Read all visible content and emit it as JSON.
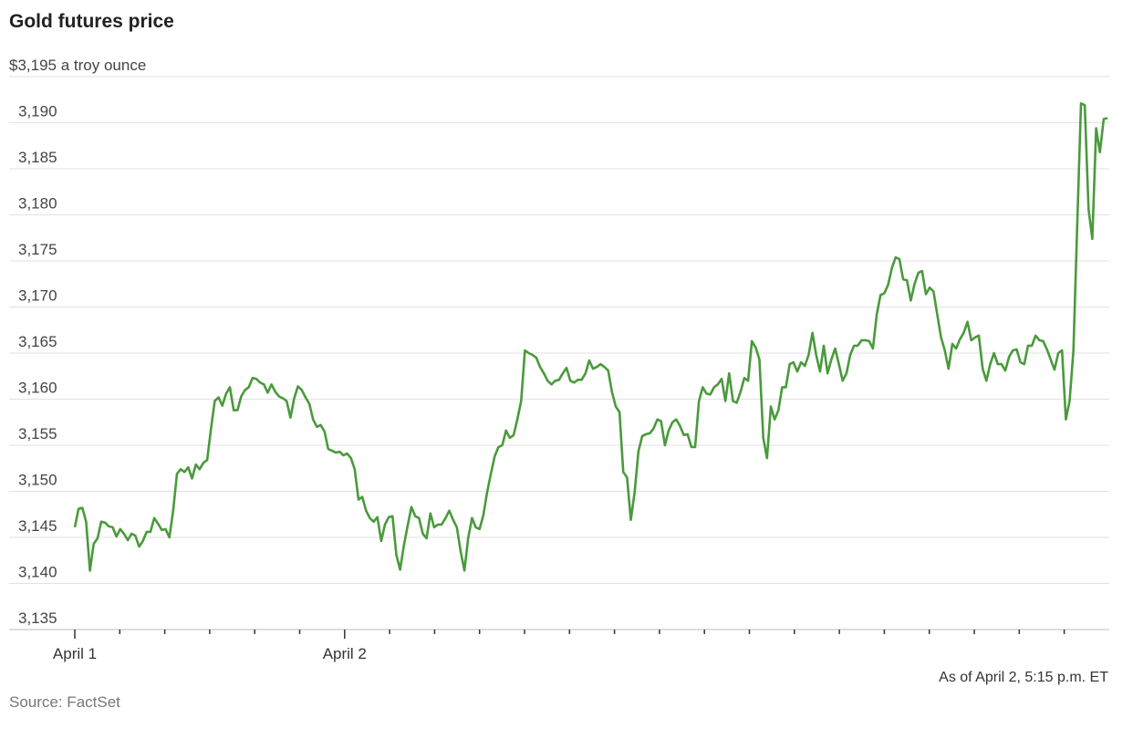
{
  "chart_data": {
    "type": "line",
    "title": "Gold futures price",
    "unit_label": "$3,195 a troy ounce",
    "ylim": [
      3135,
      3195
    ],
    "y_ticks": [
      3135,
      3140,
      3145,
      3150,
      3155,
      3160,
      3165,
      3170,
      3175,
      3180,
      3185,
      3190,
      3195
    ],
    "y_tick_labels": [
      "3,135",
      "3,140",
      "3,145",
      "3,150",
      "3,155",
      "3,160",
      "3,165",
      "3,170",
      "3,175",
      "3,180",
      "3,185",
      "3,190",
      "$3,195 a troy ounce"
    ],
    "x_tick_count": 23,
    "x_tick_labels": [
      {
        "tick": 0,
        "label": "April 1"
      },
      {
        "tick": 6,
        "label": "April 2"
      }
    ],
    "grid": true,
    "line_color": "#4a9a3c",
    "values": [
      3146.1,
      3148.1,
      3148.2,
      3146.7,
      3141.4,
      3144.3,
      3144.9,
      3146.7,
      3146.6,
      3146.2,
      3146.1,
      3145.1,
      3145.9,
      3145.4,
      3144.7,
      3145.4,
      3145.2,
      3144.0,
      3144.6,
      3145.6,
      3145.6,
      3147.1,
      3146.5,
      3145.8,
      3145.9,
      3145.0,
      3147.9,
      3151.9,
      3152.4,
      3152.1,
      3152.6,
      3151.4,
      3152.9,
      3152.4,
      3153.1,
      3153.4,
      3156.8,
      3159.8,
      3160.2,
      3159.3,
      3160.6,
      3161.3,
      3158.8,
      3158.8,
      3160.3,
      3161.0,
      3161.3,
      3162.3,
      3162.2,
      3161.8,
      3161.6,
      3160.7,
      3161.6,
      3160.8,
      3160.3,
      3160.1,
      3159.8,
      3158.0,
      3160.1,
      3161.4,
      3161.0,
      3160.2,
      3159.5,
      3157.8,
      3157.0,
      3157.2,
      3156.5,
      3154.6,
      3154.4,
      3154.2,
      3154.3,
      3153.9,
      3154.1,
      3153.6,
      3152.4,
      3149.1,
      3149.4,
      3147.9,
      3147.1,
      3146.7,
      3147.2,
      3144.6,
      3146.4,
      3147.2,
      3147.3,
      3143.1,
      3141.5,
      3144.1,
      3146.3,
      3148.3,
      3147.3,
      3147.1,
      3145.4,
      3144.9,
      3147.6,
      3146.1,
      3146.4,
      3146.4,
      3147.1,
      3147.9,
      3146.9,
      3146.1,
      3143.5,
      3141.4,
      3144.9,
      3147.1,
      3146.1,
      3145.9,
      3147.4,
      3149.9,
      3151.9,
      3153.8,
      3154.8,
      3155.0,
      3156.6,
      3155.8,
      3156.1,
      3157.8,
      3159.8,
      3165.3,
      3165.0,
      3164.8,
      3164.5,
      3163.5,
      3162.8,
      3162.0,
      3161.6,
      3162.0,
      3162.1,
      3162.8,
      3163.4,
      3162.0,
      3161.8,
      3162.1,
      3162.1,
      3162.8,
      3164.2,
      3163.3,
      3163.5,
      3163.8,
      3163.5,
      3163.1,
      3160.8,
      3159.2,
      3158.6,
      3152.1,
      3151.5,
      3146.9,
      3149.9,
      3154.3,
      3156.0,
      3156.2,
      3156.3,
      3156.8,
      3157.8,
      3157.6,
      3155.0,
      3156.6,
      3157.5,
      3157.8,
      3157.1,
      3156.1,
      3156.2,
      3154.8,
      3154.8,
      3159.8,
      3161.3,
      3160.6,
      3160.5,
      3161.3,
      3161.6,
      3162.2,
      3159.8,
      3162.8,
      3159.8,
      3159.6,
      3160.8,
      3162.3,
      3162.0,
      3166.3,
      3165.6,
      3164.3,
      3155.8,
      3153.6,
      3159.2,
      3157.8,
      3158.8,
      3161.3,
      3161.3,
      3163.8,
      3164.0,
      3163.0,
      3164.0,
      3163.6,
      3164.8,
      3167.2,
      3164.8,
      3163.0,
      3165.8,
      3162.8,
      3164.3,
      3165.5,
      3163.8,
      3162.0,
      3162.8,
      3164.8,
      3165.8,
      3165.8,
      3166.4,
      3166.4,
      3166.3,
      3165.5,
      3169.2,
      3171.3,
      3171.5,
      3172.4,
      3174.2,
      3175.4,
      3175.2,
      3173.0,
      3172.9,
      3170.7,
      3172.5,
      3173.7,
      3173.9,
      3171.4,
      3172.1,
      3171.7,
      3169.2,
      3166.7,
      3165.3,
      3163.3,
      3166.0,
      3165.5,
      3166.5,
      3167.2,
      3168.4,
      3166.4,
      3166.7,
      3166.9,
      3163.3,
      3162.0,
      3163.8,
      3165.0,
      3163.8,
      3163.8,
      3163.1,
      3164.6,
      3165.3,
      3165.4,
      3164.0,
      3163.8,
      3165.8,
      3165.8,
      3166.9,
      3166.4,
      3166.3,
      3165.4,
      3164.3,
      3163.2,
      3165.0,
      3165.3,
      3157.8,
      3159.8,
      3165.3,
      3178.7,
      3192.1,
      3191.9,
      3180.6,
      3177.4,
      3189.4,
      3186.8,
      3190.4,
      3190.5
    ]
  },
  "footer": {
    "as_of": "As of April 2, 5:15 p.m. ET",
    "source": "Source: FactSet"
  }
}
